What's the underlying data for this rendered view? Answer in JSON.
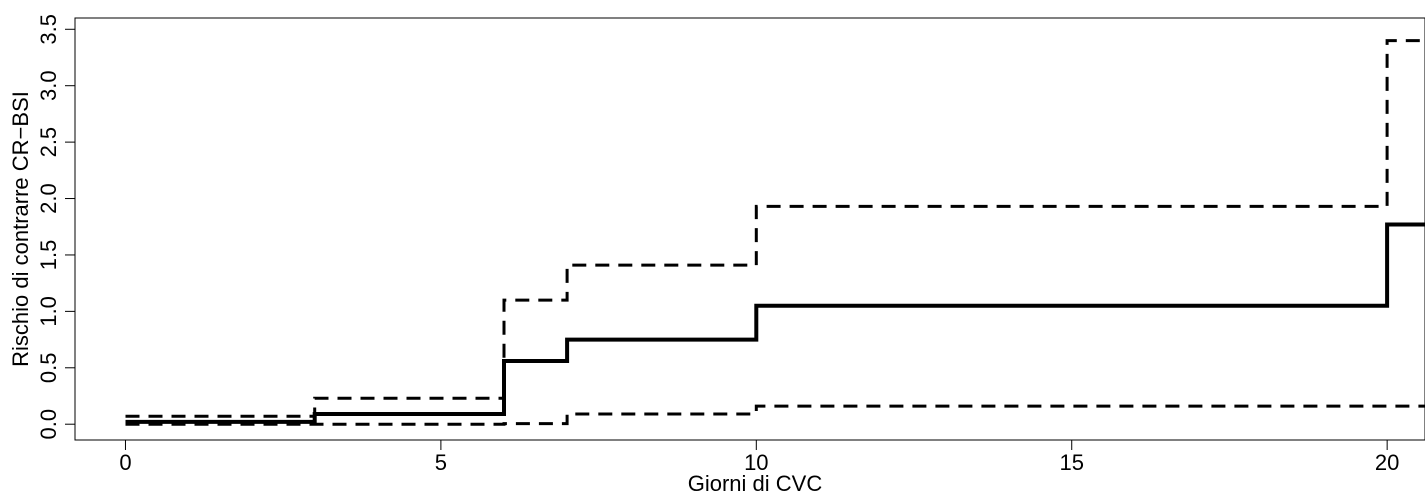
{
  "chart_data": {
    "type": "line",
    "title": "",
    "xlabel": "Giorni di CVC",
    "ylabel": "Rischio di contrarre CR−BSI",
    "xlim": [
      -0.8,
      20.6
    ],
    "ylim": [
      -0.14,
      3.6
    ],
    "x_ticks": [
      0,
      5,
      10,
      15,
      20
    ],
    "x_tick_labels": [
      "0",
      "5",
      "10",
      "15",
      "20"
    ],
    "y_ticks": [
      0.0,
      0.5,
      1.0,
      1.5,
      2.0,
      2.5,
      3.0,
      3.5
    ],
    "y_tick_labels": [
      "0.0",
      "0.5",
      "1.0",
      "1.5",
      "2.0",
      "2.5",
      "3.0",
      "3.5"
    ],
    "grid": false,
    "legend": "none",
    "series": [
      {
        "style": "solid",
        "step": true,
        "x": [
          0,
          3,
          6,
          7,
          10,
          20,
          20.6
        ],
        "y": [
          0.02,
          0.09,
          0.56,
          0.75,
          1.05,
          1.77,
          1.77
        ]
      },
      {
        "style": "dashed",
        "step": true,
        "x": [
          0,
          3,
          6,
          7,
          10,
          20,
          20.6
        ],
        "y": [
          0.07,
          0.23,
          1.1,
          1.41,
          1.93,
          3.4,
          3.4
        ]
      },
      {
        "style": "dashed",
        "step": true,
        "x": [
          0,
          3,
          6,
          7,
          10,
          20,
          20.6
        ],
        "y": [
          0.0,
          0.0,
          0.005,
          0.09,
          0.16,
          0.16,
          0.16
        ]
      }
    ]
  }
}
